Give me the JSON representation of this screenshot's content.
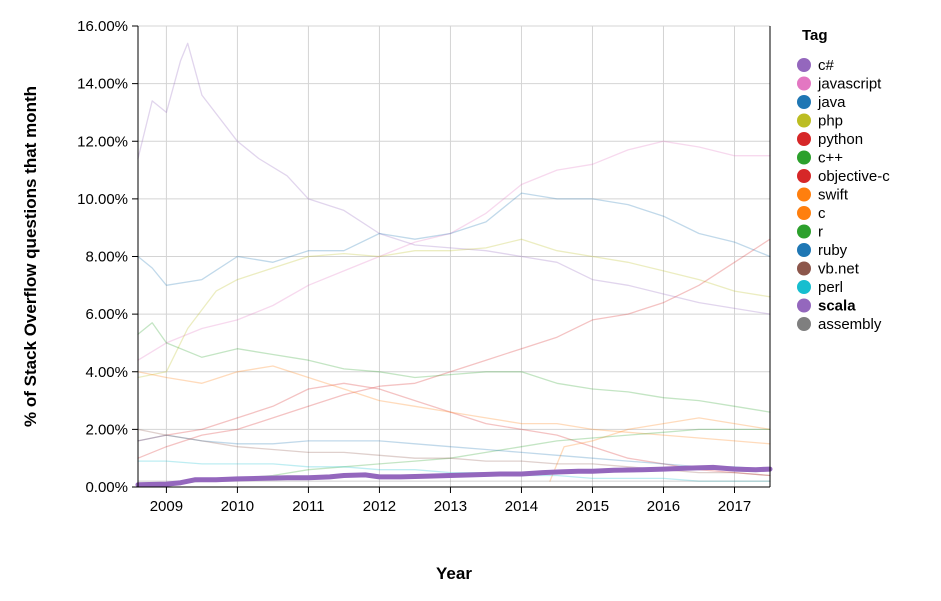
{
  "chart_data": {
    "type": "line",
    "xlabel": "Year",
    "ylabel": "% of Stack Overflow questions that month",
    "x_range": [
      2008.6,
      2017.5
    ],
    "ylim": [
      0,
      0.16
    ],
    "x_ticks": [
      2009,
      2010,
      2011,
      2012,
      2013,
      2014,
      2015,
      2016,
      2017
    ],
    "x_tick_labels": [
      "2009",
      "2010",
      "2011",
      "2012",
      "2013",
      "2014",
      "2015",
      "2016",
      "2017"
    ],
    "y_ticks": [
      0,
      0.02,
      0.04,
      0.06,
      0.08,
      0.1,
      0.12,
      0.14,
      0.16
    ],
    "y_tick_labels": [
      "0.00%",
      "2.00%",
      "4.00%",
      "6.00%",
      "8.00%",
      "10.00%",
      "12.00%",
      "14.00%",
      "16.00%"
    ],
    "grid": true,
    "legend": {
      "title": "Tag",
      "placement": "right"
    },
    "highlighted_series": "scala",
    "series": [
      {
        "name": "c#",
        "color": "#9467bd",
        "x": [
          2008.6,
          2008.8,
          2009.0,
          2009.2,
          2009.3,
          2009.5,
          2010.0,
          2010.3,
          2010.7,
          2011.0,
          2011.5,
          2012.0,
          2012.5,
          2013.0,
          2013.5,
          2014.0,
          2014.5,
          2015.0,
          2015.5,
          2016.0,
          2016.5,
          2017.0,
          2017.5
        ],
        "values": [
          0.114,
          0.134,
          0.13,
          0.148,
          0.154,
          0.136,
          0.12,
          0.114,
          0.108,
          0.1,
          0.096,
          0.088,
          0.084,
          0.083,
          0.082,
          0.08,
          0.078,
          0.072,
          0.07,
          0.067,
          0.064,
          0.062,
          0.06
        ]
      },
      {
        "name": "javascript",
        "color": "#e377c2",
        "x": [
          2008.6,
          2009.0,
          2009.5,
          2010.0,
          2010.5,
          2011.0,
          2011.5,
          2012.0,
          2012.5,
          2013.0,
          2013.5,
          2014.0,
          2014.5,
          2015.0,
          2015.5,
          2016.0,
          2016.5,
          2017.0,
          2017.5
        ],
        "values": [
          0.044,
          0.05,
          0.055,
          0.058,
          0.063,
          0.07,
          0.075,
          0.08,
          0.085,
          0.088,
          0.095,
          0.105,
          0.11,
          0.112,
          0.117,
          0.12,
          0.118,
          0.115,
          0.115
        ]
      },
      {
        "name": "java",
        "color": "#1f77b4",
        "x": [
          2008.6,
          2008.8,
          2009.0,
          2009.5,
          2010.0,
          2010.5,
          2011.0,
          2011.5,
          2012.0,
          2012.5,
          2013.0,
          2013.5,
          2014.0,
          2014.5,
          2015.0,
          2015.5,
          2016.0,
          2016.5,
          2017.0,
          2017.5
        ],
        "values": [
          0.08,
          0.076,
          0.07,
          0.072,
          0.08,
          0.078,
          0.082,
          0.082,
          0.088,
          0.086,
          0.088,
          0.092,
          0.102,
          0.1,
          0.1,
          0.098,
          0.094,
          0.088,
          0.085,
          0.08
        ]
      },
      {
        "name": "php",
        "color": "#bcbd22",
        "x": [
          2008.6,
          2009.0,
          2009.3,
          2009.7,
          2010.0,
          2010.5,
          2011.0,
          2011.5,
          2012.0,
          2012.5,
          2013.0,
          2013.5,
          2014.0,
          2014.5,
          2015.0,
          2015.5,
          2016.0,
          2016.5,
          2017.0,
          2017.5
        ],
        "values": [
          0.038,
          0.04,
          0.055,
          0.068,
          0.072,
          0.076,
          0.08,
          0.081,
          0.08,
          0.082,
          0.082,
          0.083,
          0.086,
          0.082,
          0.08,
          0.078,
          0.075,
          0.072,
          0.068,
          0.066
        ]
      },
      {
        "name": "python",
        "color": "#d62728",
        "x": [
          2008.6,
          2009.0,
          2009.5,
          2010.0,
          2010.5,
          2011.0,
          2011.5,
          2012.0,
          2012.5,
          2013.0,
          2013.5,
          2014.0,
          2014.5,
          2015.0,
          2015.5,
          2016.0,
          2016.5,
          2017.0,
          2017.5
        ],
        "values": [
          0.01,
          0.014,
          0.018,
          0.02,
          0.024,
          0.028,
          0.032,
          0.035,
          0.036,
          0.04,
          0.044,
          0.048,
          0.052,
          0.058,
          0.06,
          0.064,
          0.07,
          0.078,
          0.086
        ]
      },
      {
        "name": "c++",
        "color": "#2ca02c",
        "x": [
          2008.6,
          2008.8,
          2009.0,
          2009.5,
          2010.0,
          2010.5,
          2011.0,
          2011.5,
          2012.0,
          2012.5,
          2013.0,
          2013.5,
          2014.0,
          2014.5,
          2015.0,
          2015.5,
          2016.0,
          2016.5,
          2017.0,
          2017.5
        ],
        "values": [
          0.053,
          0.057,
          0.05,
          0.045,
          0.048,
          0.046,
          0.044,
          0.041,
          0.04,
          0.038,
          0.039,
          0.04,
          0.04,
          0.036,
          0.034,
          0.033,
          0.031,
          0.03,
          0.028,
          0.026
        ]
      },
      {
        "name": "objective-c",
        "color": "#d62728",
        "x": [
          2008.6,
          2009.0,
          2009.5,
          2010.0,
          2010.5,
          2011.0,
          2011.5,
          2012.0,
          2012.5,
          2013.0,
          2013.5,
          2014.0,
          2014.5,
          2015.0,
          2015.5,
          2016.0,
          2016.5,
          2017.0,
          2017.5
        ],
        "values": [
          0.016,
          0.018,
          0.02,
          0.024,
          0.028,
          0.034,
          0.036,
          0.034,
          0.03,
          0.026,
          0.022,
          0.02,
          0.018,
          0.014,
          0.01,
          0.008,
          0.006,
          0.005,
          0.004
        ]
      },
      {
        "name": "swift",
        "color": "#ff7f0e",
        "x": [
          2014.4,
          2014.6,
          2015.0,
          2015.5,
          2016.0,
          2016.5,
          2017.0,
          2017.5
        ],
        "values": [
          0.002,
          0.014,
          0.016,
          0.02,
          0.022,
          0.024,
          0.022,
          0.02
        ]
      },
      {
        "name": "c",
        "color": "#ff7f0e",
        "x": [
          2008.6,
          2009.0,
          2009.5,
          2010.0,
          2010.5,
          2011.0,
          2011.5,
          2012.0,
          2012.5,
          2013.0,
          2013.5,
          2014.0,
          2014.5,
          2015.0,
          2015.5,
          2016.0,
          2016.5,
          2017.0,
          2017.5
        ],
        "values": [
          0.04,
          0.038,
          0.036,
          0.04,
          0.042,
          0.038,
          0.034,
          0.03,
          0.028,
          0.026,
          0.024,
          0.022,
          0.022,
          0.02,
          0.019,
          0.018,
          0.017,
          0.016,
          0.015
        ]
      },
      {
        "name": "r",
        "color": "#2ca02c",
        "x": [
          2008.6,
          2009.0,
          2009.5,
          2010.0,
          2010.5,
          2011.0,
          2011.5,
          2012.0,
          2012.5,
          2013.0,
          2013.5,
          2014.0,
          2014.5,
          2015.0,
          2015.5,
          2016.0,
          2016.5,
          2017.0,
          2017.5
        ],
        "values": [
          0.001,
          0.001,
          0.002,
          0.003,
          0.004,
          0.006,
          0.007,
          0.008,
          0.009,
          0.01,
          0.012,
          0.014,
          0.016,
          0.017,
          0.018,
          0.019,
          0.02,
          0.02,
          0.02
        ]
      },
      {
        "name": "ruby",
        "color": "#1f77b4",
        "x": [
          2008.6,
          2009.0,
          2009.5,
          2010.0,
          2010.5,
          2011.0,
          2011.5,
          2012.0,
          2012.5,
          2013.0,
          2013.5,
          2014.0,
          2014.5,
          2015.0,
          2015.5,
          2016.0,
          2016.5,
          2017.0,
          2017.5
        ],
        "values": [
          0.016,
          0.018,
          0.016,
          0.015,
          0.015,
          0.016,
          0.016,
          0.016,
          0.015,
          0.014,
          0.013,
          0.012,
          0.011,
          0.01,
          0.009,
          0.008,
          0.007,
          0.007,
          0.006
        ]
      },
      {
        "name": "vb.net",
        "color": "#8c564b",
        "x": [
          2008.6,
          2009.0,
          2009.5,
          2010.0,
          2010.5,
          2011.0,
          2011.5,
          2012.0,
          2012.5,
          2013.0,
          2013.5,
          2014.0,
          2014.5,
          2015.0,
          2015.5,
          2016.0,
          2016.5,
          2017.0,
          2017.5
        ],
        "values": [
          0.02,
          0.018,
          0.016,
          0.014,
          0.013,
          0.012,
          0.012,
          0.011,
          0.01,
          0.01,
          0.009,
          0.009,
          0.008,
          0.008,
          0.007,
          0.006,
          0.005,
          0.005,
          0.004
        ]
      },
      {
        "name": "perl",
        "color": "#17becf",
        "x": [
          2008.6,
          2009.0,
          2009.5,
          2010.0,
          2010.5,
          2011.0,
          2011.5,
          2012.0,
          2012.5,
          2013.0,
          2013.5,
          2014.0,
          2014.5,
          2015.0,
          2015.5,
          2016.0,
          2016.5,
          2017.0,
          2017.5
        ],
        "values": [
          0.009,
          0.009,
          0.008,
          0.008,
          0.008,
          0.007,
          0.007,
          0.006,
          0.006,
          0.005,
          0.005,
          0.004,
          0.004,
          0.003,
          0.003,
          0.003,
          0.002,
          0.002,
          0.002
        ]
      },
      {
        "name": "scala",
        "color": "#9467bd",
        "x": [
          2008.6,
          2009.0,
          2009.2,
          2009.4,
          2009.7,
          2010.0,
          2010.3,
          2010.7,
          2011.0,
          2011.3,
          2011.5,
          2011.8,
          2012.0,
          2012.3,
          2012.7,
          2013.0,
          2013.3,
          2013.7,
          2014.0,
          2014.3,
          2014.5,
          2014.8,
          2015.0,
          2015.3,
          2015.7,
          2016.0,
          2016.3,
          2016.7,
          2017.0,
          2017.3,
          2017.5
        ],
        "values": [
          0.0008,
          0.001,
          0.0015,
          0.0025,
          0.0025,
          0.0028,
          0.003,
          0.0032,
          0.0032,
          0.0035,
          0.004,
          0.0042,
          0.0035,
          0.0035,
          0.0038,
          0.004,
          0.0042,
          0.0045,
          0.0045,
          0.005,
          0.0052,
          0.0055,
          0.0055,
          0.0058,
          0.006,
          0.0062,
          0.0065,
          0.0068,
          0.0062,
          0.006,
          0.0062
        ]
      },
      {
        "name": "assembly",
        "color": "#7f7f7f",
        "x": [
          2008.6,
          2009.0,
          2009.5,
          2010.0,
          2010.5,
          2011.0,
          2011.5,
          2012.0,
          2012.5,
          2013.0,
          2013.5,
          2014.0,
          2014.5,
          2015.0,
          2015.5,
          2016.0,
          2016.5,
          2017.0,
          2017.5
        ],
        "values": [
          0.002,
          0.002,
          0.002,
          0.002,
          0.002,
          0.002,
          0.002,
          0.002,
          0.002,
          0.002,
          0.002,
          0.002,
          0.002,
          0.002,
          0.002,
          0.002,
          0.002,
          0.002,
          0.002
        ]
      }
    ]
  }
}
